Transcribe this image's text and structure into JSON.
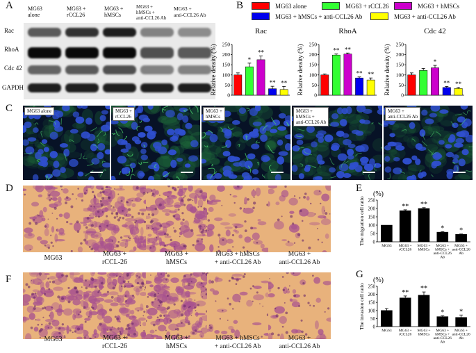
{
  "panels": {
    "a": "A",
    "b": "B",
    "c": "C",
    "d": "D",
    "e": "E",
    "f": "F",
    "g": "G"
  },
  "western_blot": {
    "columns": [
      "MG63\nalone",
      "MG63 +\nrCCL26",
      "MG63 +\nhMSCs",
      "MG63 +\nhMSCs +\nanti-CCL26 Ab",
      "MG63 +\nanti-CCL26 Ab"
    ],
    "rows": [
      "Rac",
      "RhoA",
      "Cdc 42",
      "GAPDH"
    ],
    "band_intensity": [
      [
        0.55,
        0.75,
        0.85,
        0.35,
        0.3
      ],
      [
        0.95,
        0.95,
        0.95,
        0.6,
        0.55
      ],
      [
        0.5,
        0.55,
        0.6,
        0.35,
        0.35
      ],
      [
        0.85,
        0.85,
        0.85,
        0.85,
        0.85
      ]
    ]
  },
  "legend": [
    {
      "label": "MG63 alone",
      "color": "#ff0000"
    },
    {
      "label": "MG63 + rCCL26",
      "color": "#33ff33"
    },
    {
      "label": "MG63 + hMSCs",
      "color": "#cc00cc"
    },
    {
      "label": "MG63 + hMSCs + anti-CCL26 Ab",
      "color": "#0000ee"
    },
    {
      "label": "MG63 + anti-CCL26 Ab",
      "color": "#ffff00"
    }
  ],
  "chart_data": [
    {
      "type": "bar",
      "title": "Rac",
      "ylabel": "Relative density (%)",
      "ylim": [
        0,
        250
      ],
      "yticks": [
        0,
        50,
        100,
        150,
        200,
        250
      ],
      "colors": [
        "#ff0000",
        "#33ff33",
        "#cc00cc",
        "#0000ee",
        "#ffff00"
      ],
      "values": [
        100,
        140,
        175,
        32,
        28
      ],
      "errors": [
        10,
        18,
        18,
        12,
        15
      ],
      "significance": [
        "",
        "*",
        "**",
        "**",
        "**"
      ]
    },
    {
      "type": "bar",
      "title": "RhoA",
      "ylabel": "Relative density (%)",
      "ylim": [
        0,
        250
      ],
      "yticks": [
        0,
        50,
        100,
        150,
        200,
        250
      ],
      "colors": [
        "#ff0000",
        "#33ff33",
        "#cc00cc",
        "#0000ee",
        "#ffff00"
      ],
      "values": [
        100,
        198,
        203,
        85,
        75
      ],
      "errors": [
        5,
        5,
        5,
        5,
        10
      ],
      "significance": [
        "",
        "**",
        "**",
        "**",
        "**"
      ]
    },
    {
      "type": "bar",
      "title": "Cdc 42",
      "ylabel": "Relative density (%)",
      "ylim": [
        0,
        250
      ],
      "yticks": [
        0,
        50,
        100,
        150,
        200,
        250
      ],
      "colors": [
        "#ff0000",
        "#33ff33",
        "#cc00cc",
        "#0000ee",
        "#ffff00"
      ],
      "values": [
        100,
        122,
        135,
        38,
        33
      ],
      "errors": [
        10,
        10,
        12,
        5,
        5
      ],
      "significance": [
        "",
        "",
        "*",
        "**",
        "**"
      ]
    },
    {
      "type": "bar",
      "title": "",
      "unit": "(%)",
      "ylabel": "The migration cell ratio",
      "ylim": [
        0,
        250
      ],
      "yticks": [
        0,
        50,
        100,
        150,
        200,
        250
      ],
      "colors": [
        "#000000",
        "#000000",
        "#000000",
        "#000000",
        "#000000"
      ],
      "categories": [
        "MG63",
        "MG63 +\nrCCL26",
        "MG63 +\nhMSCs",
        "MG63 +\nhMSCs +\nanti-CCL26\nAb",
        "MG63 +\nanti-CCL26\nAb"
      ],
      "values": [
        100,
        187,
        200,
        58,
        45
      ],
      "errors": [
        0,
        5,
        5,
        3,
        2
      ],
      "significance": [
        "",
        "**",
        "**",
        "*",
        "*"
      ]
    },
    {
      "type": "bar",
      "title": "",
      "unit": "(%)",
      "ylabel": "The invasion cell ratio",
      "ylim": [
        0,
        250
      ],
      "yticks": [
        0,
        50,
        100,
        150,
        200,
        250
      ],
      "colors": [
        "#000000",
        "#000000",
        "#000000",
        "#000000",
        "#000000"
      ],
      "categories": [
        "MG63",
        "MG63 +\nrCCL26",
        "MG63 +\nhMSCs",
        "MG63 +\nhMSCs +\nanti-CCL26\nAb",
        "MG63 +\nanti-CCL26\nAb"
      ],
      "values": [
        100,
        178,
        195,
        62,
        57
      ],
      "errors": [
        12,
        12,
        20,
        5,
        15
      ],
      "significance": [
        "",
        "**",
        "**",
        "*",
        "*"
      ]
    }
  ],
  "fluorescence_labels": [
    "MG63 alone",
    "MG63 +\nrCCL26",
    "MG63 +\nhMSCs",
    "MG63 +\nhMSCs +\nanti-CCL26 Ab",
    "MG63 +\nanti-CCL26 Ab"
  ],
  "migration_captions": [
    "MG63",
    "MG63 +\nrCCL-26",
    "MG63 +\nhMSCs",
    "MG63 + hMSCs\n+ anti-CCL26 Ab",
    "MG63 +\nanti-CCL26 Ab"
  ],
  "invasion_captions": [
    "MG63",
    "MG63 +\nrCCL-26",
    "MG63 +\nhMSCs",
    "MG63 + hMSCs\n+ anti-CCL26 Ab",
    "MG63 +\nanti-CCL26 Ab"
  ],
  "stain_density": [
    0.25,
    0.85,
    0.7,
    0.2,
    0.12
  ],
  "invasion_density": [
    0.5,
    0.8,
    0.75,
    0.12,
    0.15
  ]
}
